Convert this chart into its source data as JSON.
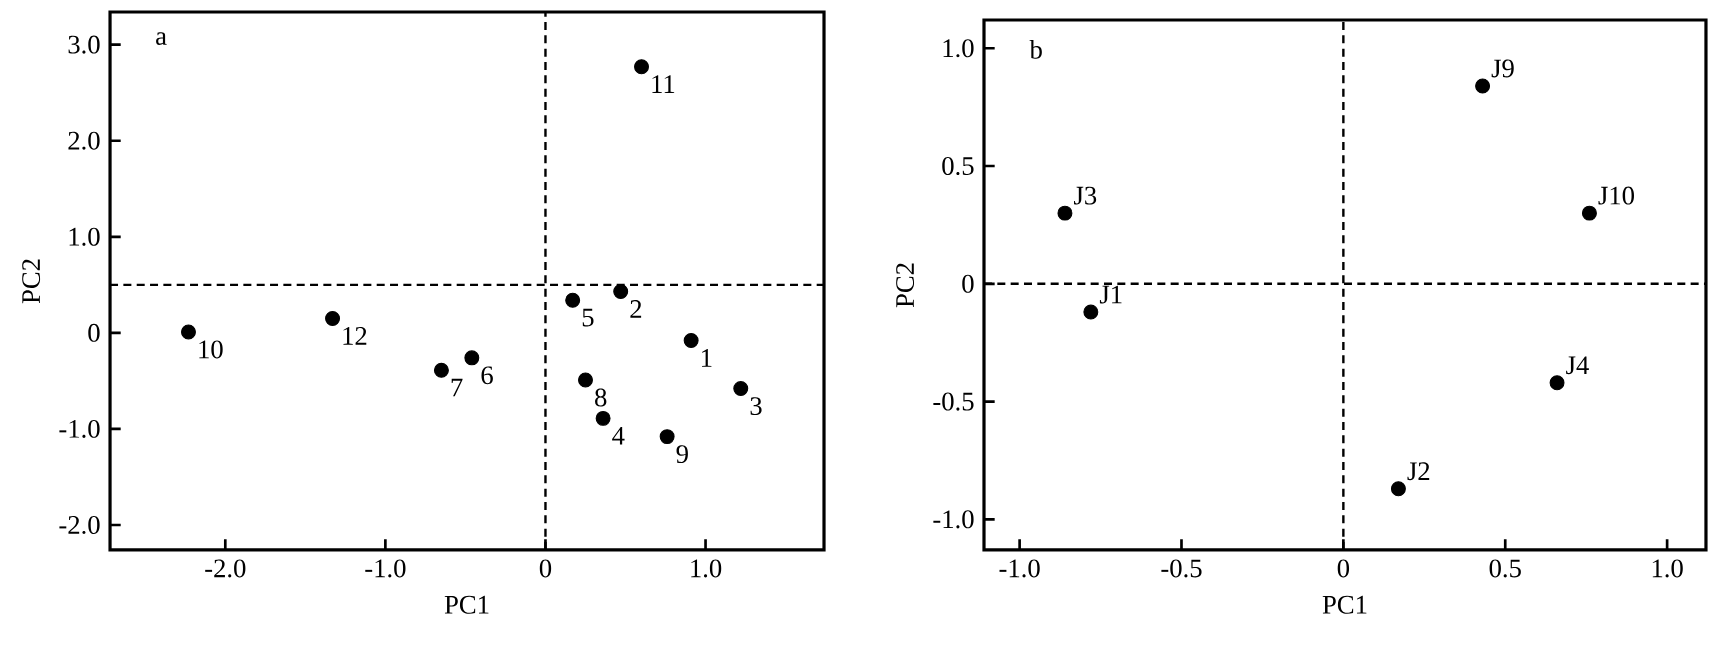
{
  "chart_data": [
    {
      "type": "scatter",
      "xlabel": "PC1",
      "ylabel": "PC2",
      "marker": "circle",
      "xlim": [
        -2.72,
        1.74
      ],
      "ylim": [
        -2.26,
        3.34
      ],
      "xticks": [
        {
          "value": -2,
          "label": "-2.0"
        },
        {
          "value": -1,
          "label": "-1.0"
        },
        0,
        {
          "value": 1,
          "label": "1.0"
        }
      ],
      "yticks": [
        {
          "value": -2,
          "label": "-2.0"
        },
        {
          "value": -1,
          "label": "-1.0"
        },
        0,
        {
          "value": 1,
          "label": "1.0"
        },
        {
          "value": 2,
          "label": "2.0"
        },
        {
          "value": 3,
          "label": "3.0"
        }
      ],
      "series": [
        {
          "color": "#000000",
          "x": [
            0.91,
            0.47,
            1.22,
            0.36,
            0.17,
            -0.46,
            -0.65,
            0.25,
            0.76,
            -2.23,
            0.6,
            -1.33
          ],
          "values": [
            -0.08,
            0.43,
            -0.58,
            -0.89,
            0.34,
            -0.26,
            -0.39,
            -0.49,
            -1.08,
            0.01,
            2.77,
            0.15
          ]
        }
      ],
      "ref_lines": [
        {
          "axis": "x",
          "value": 0,
          "line_style": "dashed"
        },
        {
          "axis": "y",
          "value": 0.5,
          "line_style": "dashed"
        }
      ],
      "annotations": [
        "a",
        {
          "text": "1",
          "x": 0.91,
          "y": -0.08
        },
        {
          "text": "2",
          "x": 0.47,
          "y": 0.43
        },
        {
          "text": "3",
          "x": 1.22,
          "y": -0.58
        },
        {
          "text": "4",
          "x": 0.36,
          "y": -0.89
        },
        {
          "text": "5",
          "x": 0.17,
          "y": 0.34
        },
        {
          "text": "6",
          "x": -0.46,
          "y": -0.26
        },
        {
          "text": "7",
          "x": -0.65,
          "y": -0.39
        },
        {
          "text": "8",
          "x": 0.25,
          "y": -0.49
        },
        {
          "text": "9",
          "x": 0.76,
          "y": -1.08
        },
        {
          "text": "10",
          "x": -2.23,
          "y": 0.01
        },
        {
          "text": "11",
          "x": 0.6,
          "y": 2.77
        },
        {
          "text": "12",
          "x": -1.33,
          "y": 0.15
        }
      ]
    },
    {
      "type": "scatter",
      "xlabel": "PC1",
      "ylabel": "PC2",
      "marker": "circle",
      "xlim": [
        -1.11,
        1.12
      ],
      "ylim": [
        -1.13,
        1.12
      ],
      "xticks": [
        {
          "value": -1,
          "label": "-1.0"
        },
        -0.5,
        0,
        0.5,
        {
          "value": 1,
          "label": "1.0"
        }
      ],
      "yticks": [
        {
          "value": -1,
          "label": "-1.0"
        },
        -0.5,
        0,
        0.5,
        {
          "value": 1,
          "label": "1.0"
        }
      ],
      "series": [
        {
          "color": "#000000",
          "x": [
            -0.78,
            0.17,
            -0.86,
            0.66,
            0.43,
            0.76
          ],
          "values": [
            -0.12,
            -0.87,
            0.3,
            -0.42,
            0.84,
            0.3
          ]
        }
      ],
      "ref_lines": [
        {
          "axis": "x",
          "value": 0,
          "line_style": "dashed"
        },
        {
          "axis": "y",
          "value": 0,
          "line_style": "dashed"
        }
      ],
      "annotations": [
        "b",
        {
          "text": "J1",
          "x": -0.78,
          "y": -0.12
        },
        {
          "text": "J2",
          "x": 0.17,
          "y": -0.87
        },
        {
          "text": "J3",
          "x": -0.86,
          "y": 0.3
        },
        {
          "text": "J4",
          "x": 0.66,
          "y": -0.42
        },
        {
          "text": "J9",
          "x": 0.43,
          "y": 0.84
        },
        {
          "text": "J10",
          "x": 0.76,
          "y": 0.3
        }
      ]
    }
  ]
}
